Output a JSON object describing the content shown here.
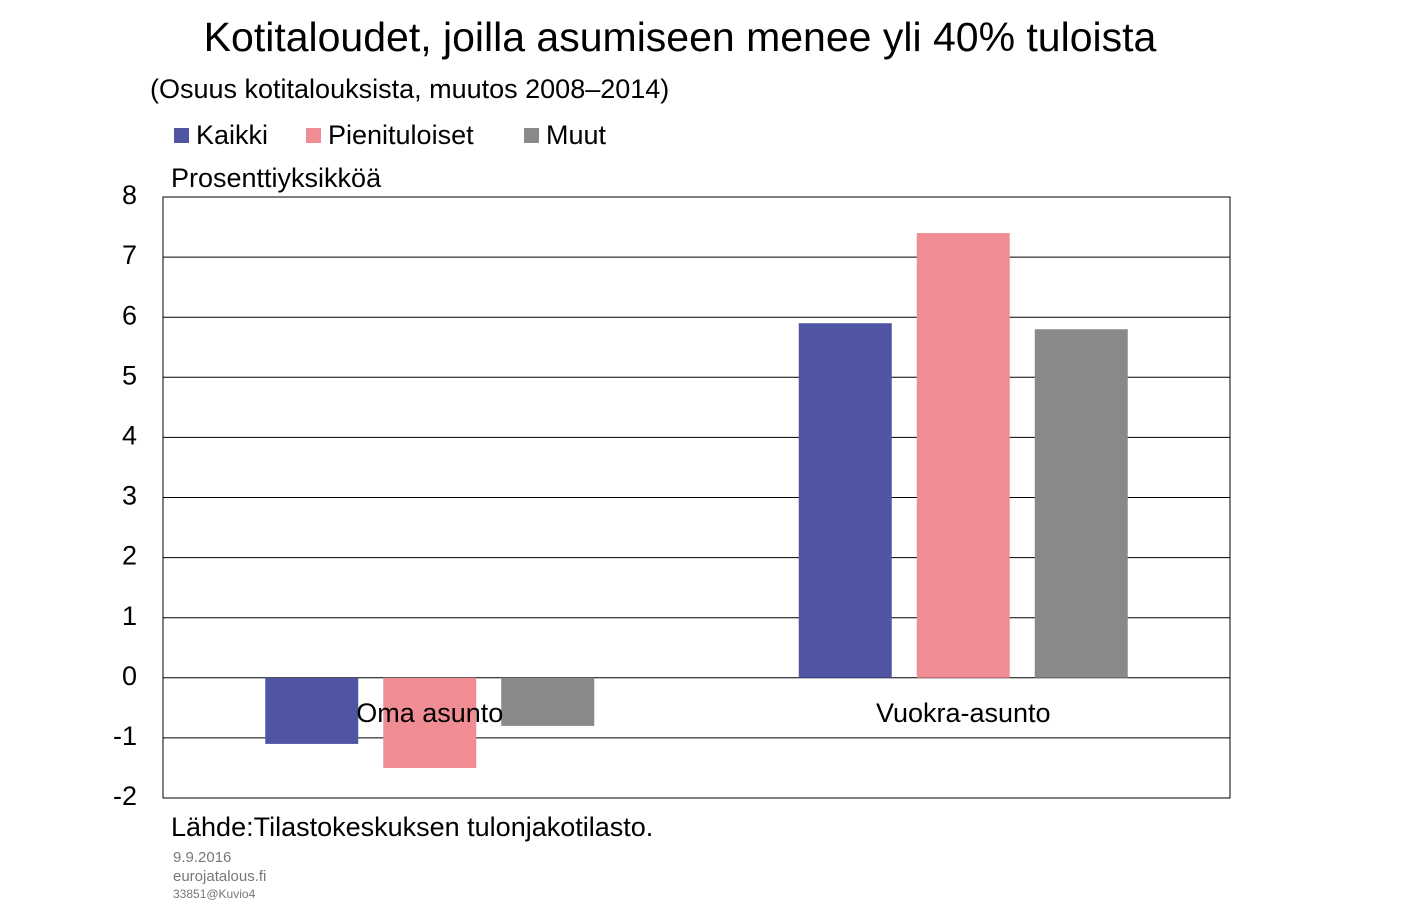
{
  "chart_data": {
    "type": "bar",
    "title": "Kotitaloudet, joilla asumiseen menee yli 40% tuloista",
    "subtitle": "(Osuus kotitalouksista, muutos 2008–2014)",
    "y_label": "Prosenttiyksikköä",
    "source": "Lähde:Tilastokeskuksen tulonjakotilasto.",
    "date": "9.9.2016",
    "site": "eurojatalous.fi",
    "code": "33851@Kuvio4",
    "categories": [
      "Oma asunto",
      "Vuokra-asunto"
    ],
    "series": [
      {
        "name": "Kaikki",
        "color": "#4f55a3",
        "values": [
          -1.1,
          5.9
        ]
      },
      {
        "name": "Pienituloiset",
        "color": "#f08d94",
        "values": [
          -1.5,
          7.4
        ]
      },
      {
        "name": "Muut",
        "color": "#898989",
        "values": [
          -0.8,
          5.8
        ]
      }
    ],
    "ylim": [
      -2,
      8
    ],
    "yticks": [
      -2,
      -1,
      0,
      1,
      2,
      3,
      4,
      5,
      6,
      7,
      8
    ],
    "grid": true
  }
}
